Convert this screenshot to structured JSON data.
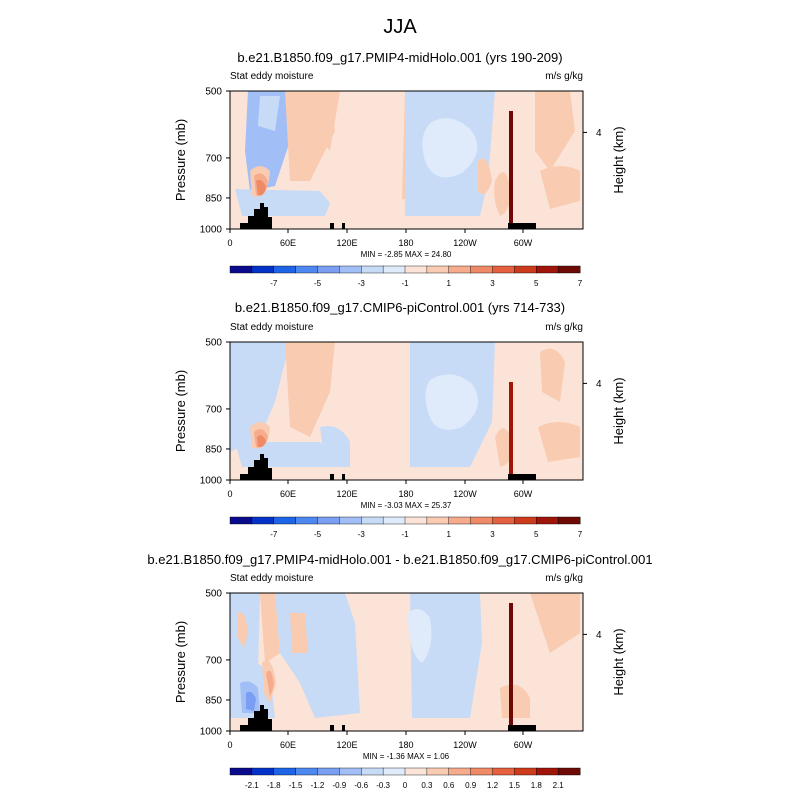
{
  "main_title": "JJA",
  "colors": {
    "ocean": "#FBE4D7",
    "land": "#000000",
    "scale": [
      "#0A0A8C",
      "#0432C8",
      "#1E64E6",
      "#4D88F0",
      "#799EF2",
      "#A2BEF6",
      "#C7DBF7",
      "#DFEBFA",
      "#FBE4D7",
      "#F9CBB1",
      "#F5AB8C",
      "#EF8A66",
      "#E5603F",
      "#CC3B1C",
      "#A0150A",
      "#6E0A06"
    ]
  },
  "chart_data": [
    {
      "type": "heatmap",
      "title": "b.e21.B1850.f09_g17.PMIP4-midHolo.001 (yrs 190-209)",
      "left_label": "Stat eddy moisture",
      "right_label": "m/s g/kg",
      "ylabel": "Pressure (mb)",
      "y2label": "Height (km)",
      "y_ticks": [
        "500",
        "700",
        "850",
        "1000"
      ],
      "y2_ticks": [
        "4"
      ],
      "x_ticks": [
        "0",
        "60E",
        "120E",
        "180",
        "120W",
        "60W"
      ],
      "stats": "MIN =  -2.85  MAX =  24.80",
      "colorbar_ticks": [
        "-7",
        "-5",
        "-3",
        "-1",
        "1",
        "3",
        "5",
        "7"
      ],
      "min": -2.85,
      "max": 24.8
    },
    {
      "type": "heatmap",
      "title": "b.e21.B1850.f09_g17.CMIP6-piControl.001 (yrs 714-733)",
      "left_label": "Stat eddy moisture",
      "right_label": "m/s g/kg",
      "ylabel": "Pressure (mb)",
      "y2label": "Height (km)",
      "y_ticks": [
        "500",
        "700",
        "850",
        "1000"
      ],
      "y2_ticks": [
        "4"
      ],
      "x_ticks": [
        "0",
        "60E",
        "120E",
        "180",
        "120W",
        "60W"
      ],
      "stats": "MIN =  -3.03  MAX =  25.37",
      "colorbar_ticks": [
        "-7",
        "-5",
        "-3",
        "-1",
        "1",
        "3",
        "5",
        "7"
      ],
      "min": -3.03,
      "max": 25.37
    },
    {
      "type": "heatmap",
      "title": "b.e21.B1850.f09_g17.PMIP4-midHolo.001 - b.e21.B1850.f09_g17.CMIP6-piControl.001",
      "left_label": "Stat eddy moisture",
      "right_label": "m/s g/kg",
      "ylabel": "Pressure (mb)",
      "y2label": "Height (km)",
      "y_ticks": [
        "500",
        "700",
        "850",
        "1000"
      ],
      "y2_ticks": [
        "4"
      ],
      "x_ticks": [
        "0",
        "60E",
        "120E",
        "180",
        "120W",
        "60W"
      ],
      "stats": "MIN =  -1.36  MAX =   1.06",
      "colorbar_ticks": [
        "-2.1",
        "-1.8",
        "-1.5",
        "-1.2",
        "-0.9",
        "-0.6",
        "-0.3",
        "0",
        "0.3",
        "0.6",
        "0.9",
        "1.2",
        "1.5",
        "1.8",
        "2.1"
      ],
      "min": -1.36,
      "max": 1.06
    }
  ]
}
